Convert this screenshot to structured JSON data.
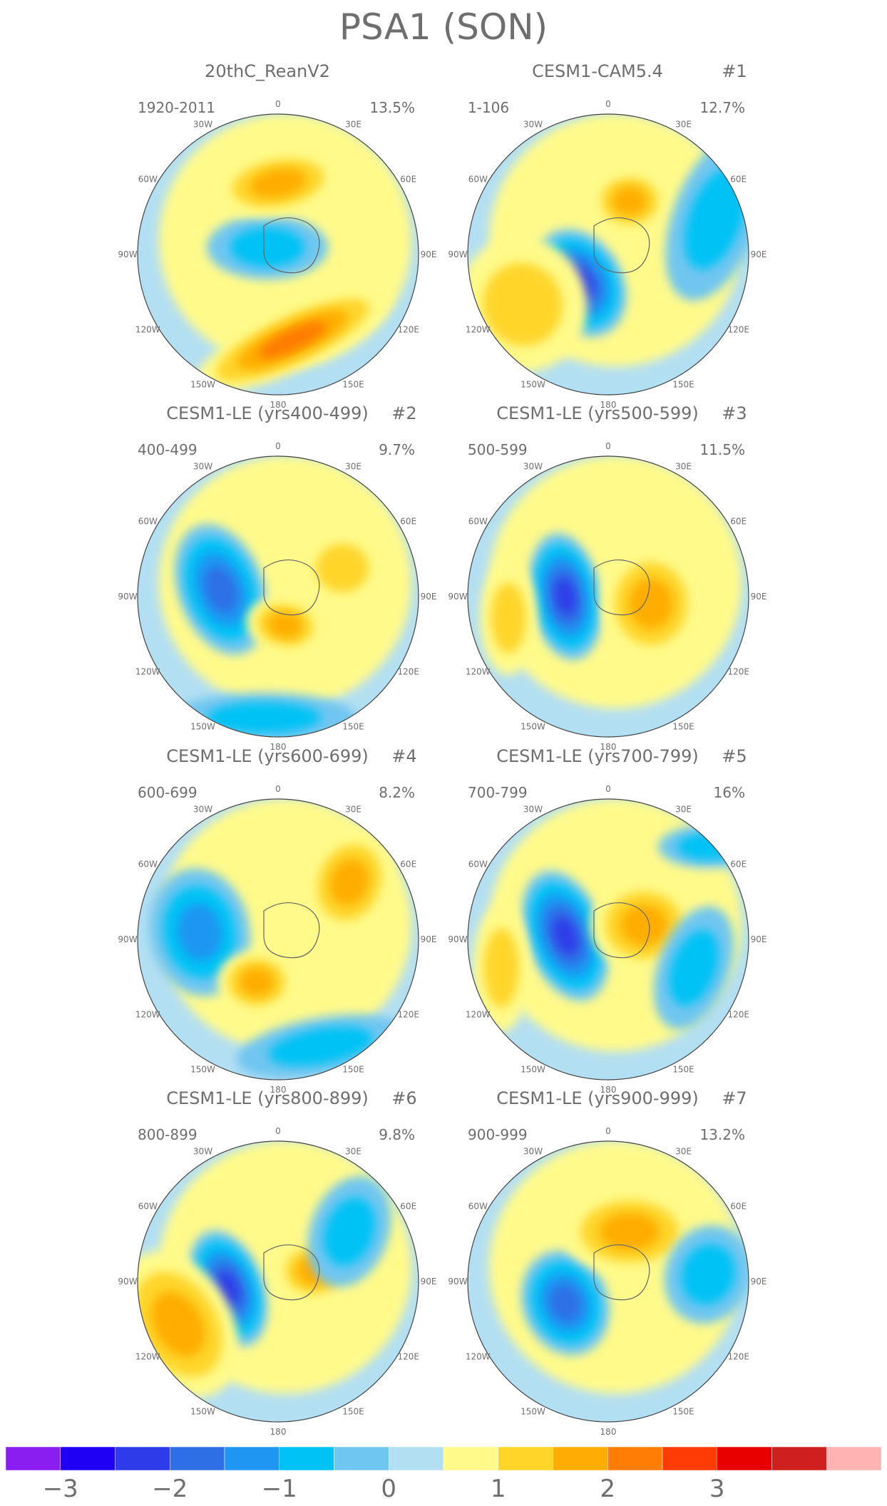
{
  "title": "PSA1 (SON)",
  "lon_labels": [
    "0",
    "30E",
    "60E",
    "90E",
    "120E",
    "150E",
    "180",
    "150W",
    "120W",
    "90W",
    "60W",
    "30W"
  ],
  "panels": [
    {
      "label": "20thC_ReanV2",
      "number": "",
      "years": "1920-2011",
      "pct": "13.5%"
    },
    {
      "label": "CESM1-CAM5.4",
      "number": "#1",
      "years": "1-106",
      "pct": "12.7%"
    },
    {
      "label": "CESM1-LE (yrs400-499)",
      "number": "#2",
      "years": "400-499",
      "pct": "9.7%"
    },
    {
      "label": "CESM1-LE (yrs500-599)",
      "number": "#3",
      "years": "500-599",
      "pct": "11.5%"
    },
    {
      "label": "CESM1-LE (yrs600-699)",
      "number": "#4",
      "years": "600-699",
      "pct": "8.2%"
    },
    {
      "label": "CESM1-LE (yrs700-799)",
      "number": "#5",
      "years": "700-799",
      "pct": "16%"
    },
    {
      "label": "CESM1-LE (yrs800-899)",
      "number": "#6",
      "years": "800-899",
      "pct": "9.8%"
    },
    {
      "label": "CESM1-LE (yrs900-999)",
      "number": "#7",
      "years": "900-999",
      "pct": "13.2%"
    }
  ],
  "colorbar": {
    "colors": [
      "#8a1ef0",
      "#1f00f5",
      "#2d3ce8",
      "#2f6fe6",
      "#1f96f2",
      "#00c2f5",
      "#6fc6f0",
      "#b3dff2",
      "#fffa8a",
      "#ffd52a",
      "#ffad05",
      "#ff7c05",
      "#ff3c05",
      "#e80000",
      "#d01f1f",
      "#ffb3b3"
    ],
    "tick_labels": [
      "−3",
      "−2",
      "−1",
      "0",
      "1",
      "2",
      "3"
    ]
  }
}
